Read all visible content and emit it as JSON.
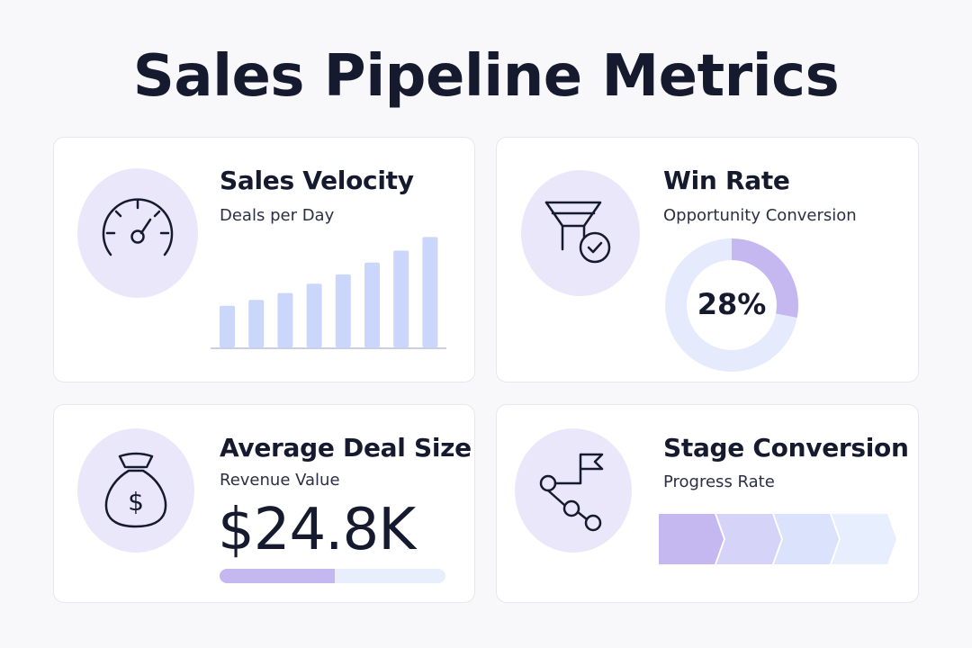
{
  "page": {
    "title": "Sales Pipeline Metrics"
  },
  "colors": {
    "accent": "#c5b7f0",
    "bar": "#cbd6fb",
    "track": "#e9eefc",
    "icon_bg": "#ebe7fb"
  },
  "cards": {
    "velocity": {
      "title": "Sales Velocity",
      "subtitle": "Deals per Day",
      "icon": "speedometer-icon"
    },
    "winrate": {
      "title": "Win Rate",
      "subtitle": "Opportunity Conversion",
      "icon": "funnel-check-icon",
      "value_label": "28%",
      "value": 28
    },
    "deal": {
      "title": "Average Deal Size",
      "subtitle": "Revenue Value",
      "icon": "money-bag-icon",
      "value_label": "$24.8K",
      "progress": 0.51
    },
    "stage": {
      "title": "Stage Conversion",
      "subtitle": "Progress Rate",
      "icon": "stage-path-flag-icon",
      "stages": [
        {
          "color": "#c5b7f0"
        },
        {
          "color": "#d5d4f8"
        },
        {
          "color": "#dbe3fc"
        },
        {
          "color": "#e7eefd"
        }
      ]
    }
  },
  "chart_data": {
    "type": "bar",
    "values": [
      4.9,
      5.6,
      6.4,
      7.5,
      8.6,
      10.0,
      11.4,
      13.0
    ],
    "ylim": [
      0,
      14
    ]
  }
}
